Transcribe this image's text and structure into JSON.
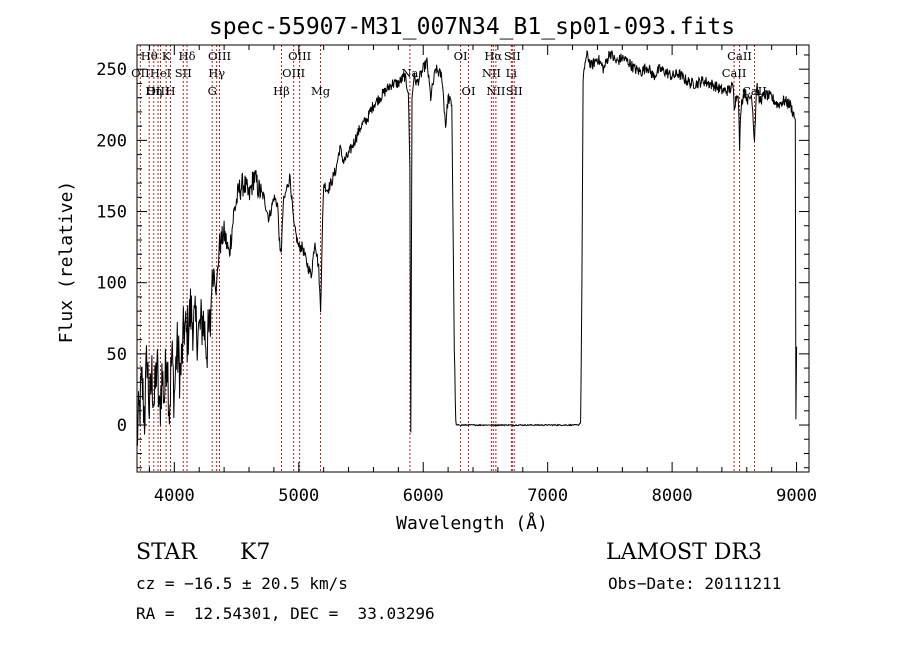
{
  "chart_data": {
    "type": "line",
    "title": "spec-55907-M31_007N34_B1_sp01-093.fits",
    "xlabel": "Wavelength (Å)",
    "ylabel": "Flux (relative)",
    "xlim": [
      3700,
      9100
    ],
    "ylim": [
      -33,
      267
    ],
    "xticks": [
      4000,
      5000,
      6000,
      7000,
      8000,
      9000
    ],
    "yticks": [
      0,
      50,
      100,
      150,
      200,
      250
    ],
    "series": [
      {
        "name": "flux",
        "x": [
          3700,
          3740,
          3760,
          3780,
          3800,
          3820,
          3840,
          3860,
          3880,
          3900,
          3920,
          3940,
          3960,
          3980,
          4000,
          4020,
          4050,
          4080,
          4100,
          4130,
          4160,
          4200,
          4230,
          4260,
          4290,
          4300,
          4320,
          4340,
          4360,
          4400,
          4440,
          4480,
          4520,
          4560,
          4600,
          4640,
          4680,
          4720,
          4760,
          4800,
          4830,
          4850,
          4861,
          4875,
          4900,
          4930,
          4960,
          5000,
          5030,
          5060,
          5100,
          5130,
          5160,
          5175,
          5185,
          5200,
          5230,
          5260,
          5300,
          5330,
          5360,
          5400,
          5450,
          5500,
          5550,
          5600,
          5650,
          5700,
          5750,
          5800,
          5850,
          5880,
          5893,
          5900,
          5910,
          5925,
          5950,
          6000,
          6030,
          6060,
          6100,
          6150,
          6180,
          6200,
          6230,
          6250,
          6262,
          6270,
          6800,
          7200,
          7250,
          7265,
          7275,
          7285,
          7300,
          7320,
          7350,
          7400,
          7450,
          7500,
          7550,
          7600,
          7650,
          7700,
          7750,
          7800,
          7850,
          7900,
          7950,
          8000,
          8050,
          8100,
          8150,
          8200,
          8250,
          8300,
          8350,
          8400,
          8450,
          8490,
          8500,
          8530,
          8542,
          8555,
          8580,
          8610,
          8640,
          8662,
          8680,
          8700,
          8750,
          8800,
          8850,
          8900,
          8950,
          8990,
          8995,
          9000
        ],
        "values": [
          -10,
          30,
          5,
          50,
          10,
          35,
          15,
          45,
          5,
          35,
          20,
          55,
          10,
          50,
          20,
          55,
          35,
          70,
          60,
          80,
          70,
          65,
          75,
          55,
          70,
          100,
          110,
          95,
          125,
          135,
          120,
          150,
          165,
          170,
          160,
          175,
          165,
          160,
          145,
          160,
          155,
          120,
          125,
          155,
          165,
          175,
          140,
          125,
          125,
          115,
          105,
          130,
          110,
          80,
          120,
          170,
          165,
          170,
          180,
          195,
          185,
          190,
          200,
          210,
          215,
          225,
          230,
          235,
          240,
          240,
          245,
          235,
          180,
          -5,
          230,
          245,
          240,
          250,
          255,
          230,
          250,
          245,
          210,
          230,
          225,
          55,
          0,
          0,
          0,
          0,
          0,
          2,
          100,
          240,
          255,
          260,
          252,
          258,
          250,
          262,
          255,
          258,
          255,
          250,
          248,
          252,
          245,
          250,
          248,
          245,
          247,
          243,
          240,
          240,
          242,
          240,
          238,
          235,
          235,
          238,
          225,
          235,
          195,
          225,
          235,
          228,
          232,
          200,
          240,
          228,
          232,
          230,
          225,
          228,
          225,
          215,
          0,
          55
        ]
      }
    ],
    "spectral_lines": [
      {
        "label": "Hθ",
        "wavelength": 3798,
        "row": 1
      },
      {
        "label": "OII",
        "wavelength": 3727,
        "row": 2
      },
      {
        "label": "OIII",
        "wavelength": 3869,
        "row": 3
      },
      {
        "label": "Hη",
        "wavelength": 3835,
        "row": 3
      },
      {
        "label": "K",
        "wavelength": 3934,
        "row": 1
      },
      {
        "label": "HeI",
        "wavelength": 3889,
        "row": 2
      },
      {
        "label": "SII",
        "wavelength": 4072,
        "row": 2
      },
      {
        "label": "H",
        "wavelength": 3969,
        "row": 3
      },
      {
        "label": "Hδ",
        "wavelength": 4102,
        "row": 1
      },
      {
        "label": "OIII",
        "wavelength": 4363,
        "row": 1
      },
      {
        "label": "Hγ",
        "wavelength": 4340,
        "row": 2
      },
      {
        "label": "G",
        "wavelength": 4304,
        "row": 3
      },
      {
        "label": "Hβ",
        "wavelength": 4861,
        "row": 3
      },
      {
        "label": "OIII",
        "wavelength": 5007,
        "row": 1
      },
      {
        "label": "OIII",
        "wavelength": 4959,
        "row": 2
      },
      {
        "label": "Mg",
        "wavelength": 5175,
        "row": 3
      },
      {
        "label": "Na",
        "wavelength": 5893,
        "row": 2
      },
      {
        "label": "OI",
        "wavelength": 6300,
        "row": 1
      },
      {
        "label": "OI",
        "wavelength": 6364,
        "row": 3
      },
      {
        "label": "Hα",
        "wavelength": 6563,
        "row": 1
      },
      {
        "label": "SII",
        "wavelength": 6716,
        "row": 1
      },
      {
        "label": "NII",
        "wavelength": 6548,
        "row": 2
      },
      {
        "label": "Li",
        "wavelength": 6708,
        "row": 2
      },
      {
        "label": "NII",
        "wavelength": 6584,
        "row": 3
      },
      {
        "label": "SII",
        "wavelength": 6731,
        "row": 3
      },
      {
        "label": "CaII",
        "wavelength": 8542,
        "row": 1
      },
      {
        "label": "CaII",
        "wavelength": 8498,
        "row": 2
      },
      {
        "label": "CaII",
        "wavelength": 8662,
        "row": 3
      }
    ]
  },
  "info": {
    "class_text": "STAR",
    "subclass_text": "K7",
    "survey_text": "LAMOST DR3",
    "cz_text": "cz = −16.5 ± 20.5 km/s",
    "obsdate_text": "Obs−Date: 20111211",
    "radec_text": "RA =  12.54301, DEC =  33.03296"
  },
  "colors": {
    "line_marker": "#b22222",
    "spectrum": "#000000"
  }
}
